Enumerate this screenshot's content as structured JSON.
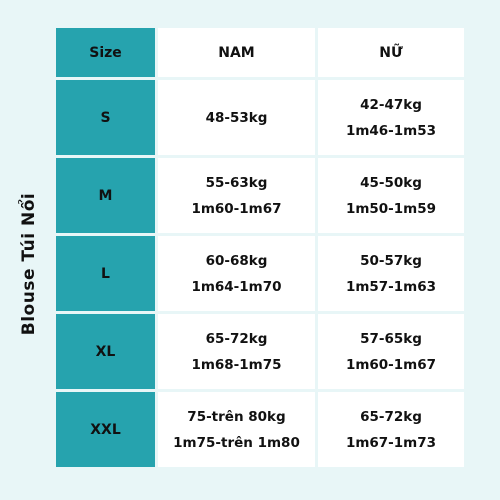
{
  "side_title": "Blouse Túi Nổi",
  "header": {
    "size": "Size",
    "nam": "NAM",
    "nu": "NỮ"
  },
  "rows": [
    {
      "size": "S",
      "nam": [
        "48-53kg"
      ],
      "nu": [
        "42-47kg",
        "1m46-1m53"
      ]
    },
    {
      "size": "M",
      "nam": [
        "55-63kg",
        "1m60-1m67"
      ],
      "nu": [
        "45-50kg",
        "1m50-1m59"
      ]
    },
    {
      "size": "L",
      "nam": [
        "60-68kg",
        "1m64-1m70"
      ],
      "nu": [
        "50-57kg",
        "1m57-1m63"
      ]
    },
    {
      "size": "XL",
      "nam": [
        "65-72kg",
        "1m68-1m75"
      ],
      "nu": [
        "57-65kg",
        "1m60-1m67"
      ]
    },
    {
      "size": "XXL",
      "nam": [
        "75-trên 80kg",
        "1m75-trên 1m80"
      ],
      "nu": [
        "65-72kg",
        "1m67-1m73"
      ]
    }
  ],
  "colors": {
    "background": "#e8f6f7",
    "size_column": "#26a3ae",
    "cell": "#ffffff"
  }
}
